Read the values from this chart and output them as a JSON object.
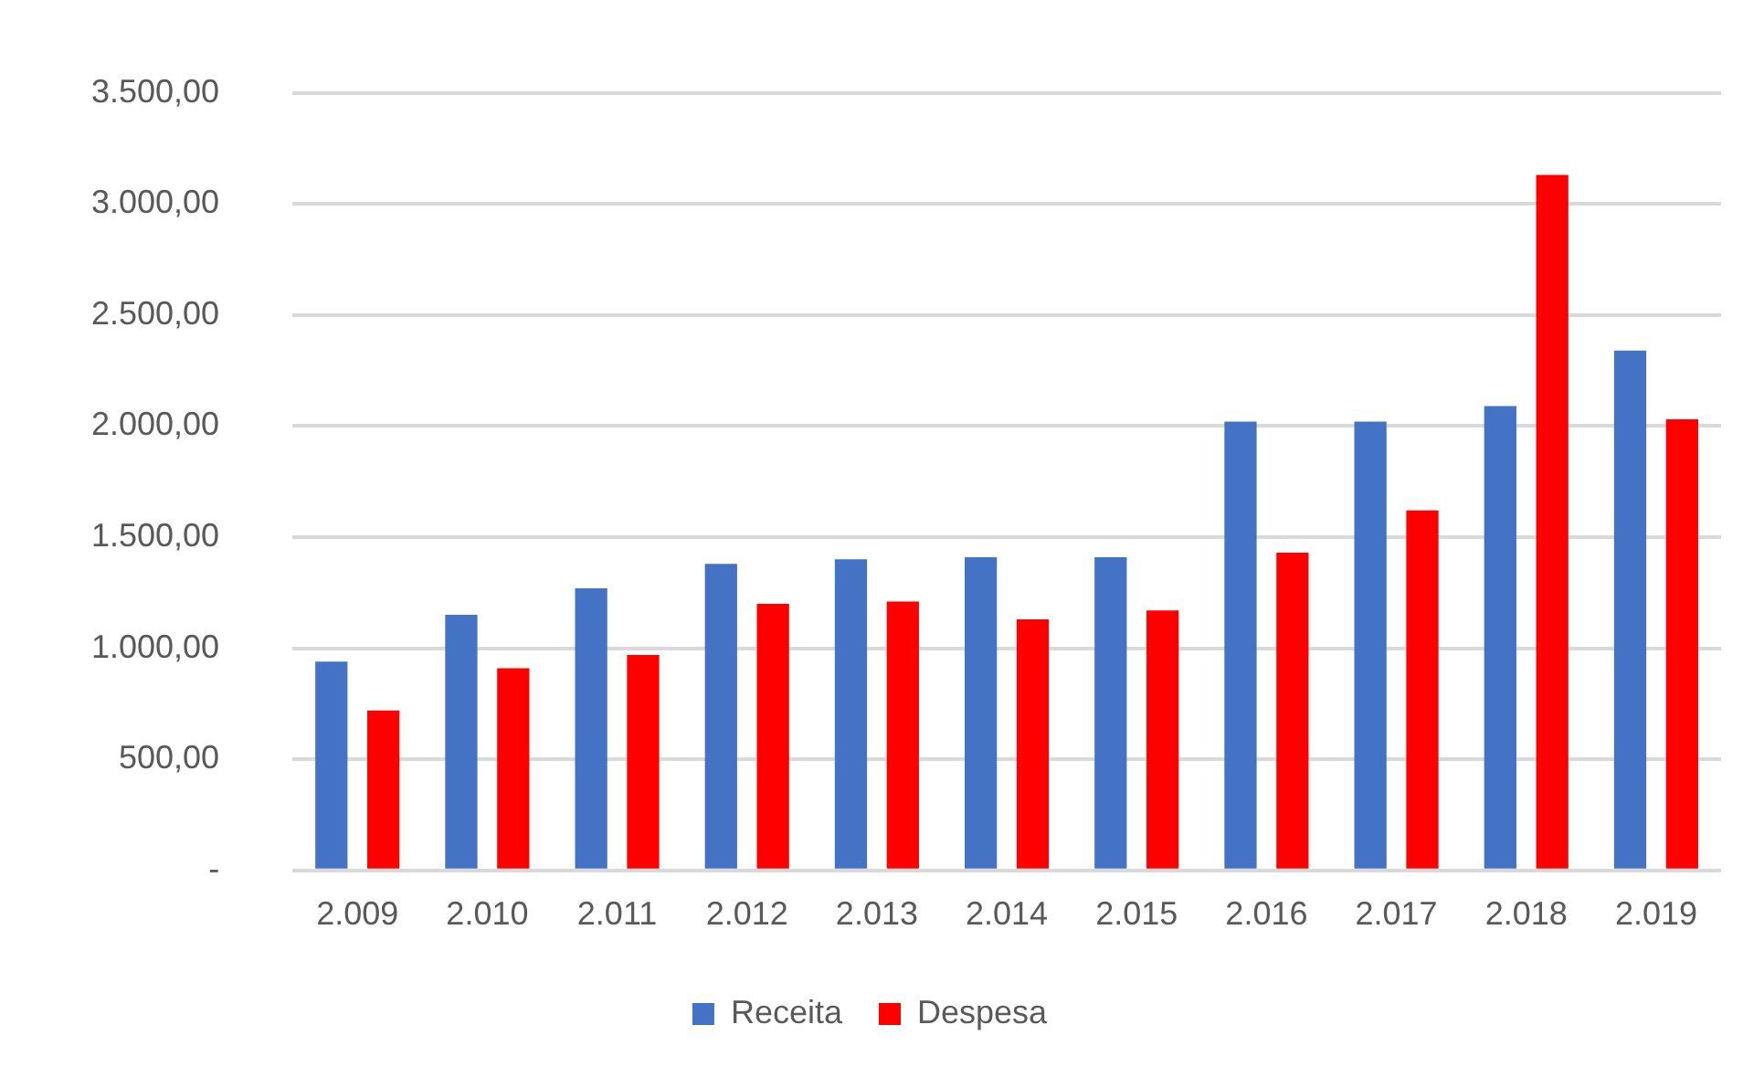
{
  "chart_data": {
    "type": "bar",
    "categories": [
      "2.009",
      "2.010",
      "2.011",
      "2.012",
      "2.013",
      "2.014",
      "2.015",
      "2.016",
      "2.017",
      "2.018",
      "2.019"
    ],
    "series": [
      {
        "name": "Receita",
        "color": "#4472c4",
        "values": [
          940,
          1150,
          1270,
          1380,
          1400,
          1410,
          1410,
          2020,
          2020,
          2090,
          2340
        ]
      },
      {
        "name": "Despesa",
        "color": "#ff0000",
        "values": [
          720,
          910,
          970,
          1200,
          1210,
          1130,
          1170,
          1430,
          1620,
          3130,
          2030
        ]
      }
    ],
    "ylim": [
      0,
      3500
    ],
    "yticks": [
      {
        "value": 0,
        "label": "-"
      },
      {
        "value": 500,
        "label": "500,00"
      },
      {
        "value": 1000,
        "label": "1.000,00"
      },
      {
        "value": 1500,
        "label": "1.500,00"
      },
      {
        "value": 2000,
        "label": "2.000,00"
      },
      {
        "value": 2500,
        "label": "2.500,00"
      },
      {
        "value": 3000,
        "label": "3.000,00"
      },
      {
        "value": 3500,
        "label": "3.500,00"
      }
    ],
    "grid": "y",
    "legend": "bottom"
  }
}
